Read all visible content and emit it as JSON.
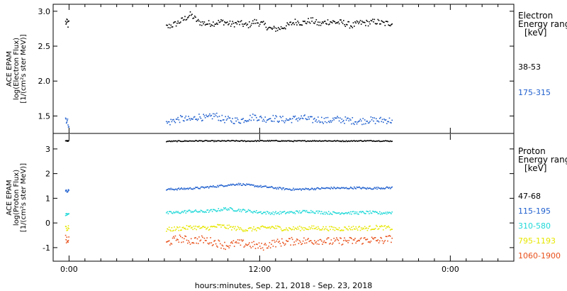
{
  "chart_data": [
    {
      "type": "scatter",
      "title": "",
      "xlabel": "",
      "ylabel_lines": [
        "ACE EPAM",
        "log(Electron Flux)",
        "[1/(cm²s ster MeV)]"
      ],
      "ylim": [
        1.25,
        3.1
      ],
      "yticks": [
        "1.5",
        "2.0",
        "2.5",
        "3.0"
      ],
      "legend": {
        "header": [
          "Electron",
          "Energy ranges",
          "[keV]"
        ],
        "placement": "right"
      },
      "series": [
        {
          "name": "38-53",
          "color": "#000000",
          "baseline": 2.83,
          "noise": 0.045,
          "segments": [
            {
              "start": -0.25,
              "end": -0.05,
              "values": [
                2.85,
                2.83,
                2.87,
                2.81,
                2.85
              ]
            },
            {
              "start": 6.1,
              "end": 20.3,
              "values": [
                2.78,
                2.82,
                2.88,
                2.96,
                2.85,
                2.83,
                2.84,
                2.86,
                2.82,
                2.84,
                2.8,
                2.86,
                2.82,
                2.75,
                2.76,
                2.8,
                2.86,
                2.84,
                2.88,
                2.82,
                2.86,
                2.85,
                2.84,
                2.8,
                2.84,
                2.84,
                2.86,
                2.83,
                2.84
              ]
            }
          ]
        },
        {
          "name": "175-315",
          "color": "#1f5fce",
          "baseline": 1.46,
          "noise": 0.05,
          "segments": [
            {
              "start": -0.25,
              "end": -0.05,
              "values": [
                1.48,
                1.44,
                1.42,
                1.38
              ]
            },
            {
              "start": 6.1,
              "end": 20.3,
              "values": [
                1.4,
                1.45,
                1.47,
                1.45,
                1.5,
                1.47,
                1.52,
                1.46,
                1.45,
                1.44,
                1.47,
                1.5,
                1.46,
                1.48,
                1.46,
                1.45,
                1.47,
                1.48,
                1.45,
                1.46,
                1.44,
                1.46,
                1.45,
                1.44,
                1.43,
                1.45,
                1.44,
                1.45,
                1.44
              ]
            }
          ]
        }
      ]
    },
    {
      "type": "scatter",
      "title": "",
      "xlabel": "hours:minutes, Sep. 21, 2018 - Sep. 23, 2018",
      "ylabel_lines": [
        "ACE EPAM",
        "log(Proton Flux)",
        "[1/(cm²s ster MeV)]"
      ],
      "ylim": [
        -1.55,
        3.6
      ],
      "yticks": [
        "-1",
        "0",
        "1",
        "2",
        "3"
      ],
      "xlim": [
        -1.0,
        28.0
      ],
      "xticks": [
        "0:00",
        "12:00",
        "0:00"
      ],
      "legend": {
        "header": [
          "Proton",
          "Energy ranges",
          "[keV]"
        ],
        "placement": "right"
      },
      "series": [
        {
          "name": "47-68",
          "color": "#000000",
          "baseline": 3.35,
          "noise": 0.02,
          "segments": [
            {
              "start": -0.25,
              "end": -0.05,
              "values": [
                3.34,
                3.35,
                3.35
              ]
            },
            {
              "start": 6.1,
              "end": 20.3,
              "values": [
                3.33,
                3.34,
                3.35,
                3.34,
                3.35,
                3.34,
                3.35,
                3.35,
                3.34,
                3.35,
                3.35,
                3.34,
                3.35,
                3.35,
                3.34
              ]
            }
          ]
        },
        {
          "name": "115-195",
          "color": "#1f5fce",
          "baseline": 1.4,
          "noise": 0.04,
          "segments": [
            {
              "start": -0.25,
              "end": -0.05,
              "values": [
                1.35,
                1.3,
                1.32,
                1.35
              ]
            },
            {
              "start": 6.1,
              "end": 20.3,
              "values": [
                1.38,
                1.4,
                1.42,
                1.45,
                1.5,
                1.55,
                1.6,
                1.55,
                1.5,
                1.45,
                1.4,
                1.38,
                1.4,
                1.42,
                1.44,
                1.43,
                1.45,
                1.42,
                1.44,
                1.45
              ]
            }
          ]
        },
        {
          "name": "310-580",
          "color": "#20d8d8",
          "baseline": 0.45,
          "noise": 0.06,
          "segments": [
            {
              "start": -0.25,
              "end": -0.05,
              "values": [
                0.35,
                0.4,
                0.42
              ]
            },
            {
              "start": 6.1,
              "end": 20.3,
              "values": [
                0.42,
                0.45,
                0.5,
                0.48,
                0.52,
                0.6,
                0.55,
                0.5,
                0.45,
                0.42,
                0.44,
                0.46,
                0.5,
                0.45,
                0.42,
                0.44,
                0.43,
                0.45,
                0.42,
                0.45
              ]
            }
          ]
        },
        {
          "name": "795-1193",
          "color": "#e6e600",
          "baseline": -0.2,
          "noise": 0.09,
          "segments": [
            {
              "start": -0.25,
              "end": -0.05,
              "values": [
                -0.1,
                -0.25,
                -0.15
              ]
            },
            {
              "start": 6.1,
              "end": 20.3,
              "values": [
                -0.25,
                -0.2,
                -0.15,
                -0.2,
                -0.1,
                -0.18,
                -0.25,
                -0.2,
                -0.15,
                -0.22,
                -0.2,
                -0.18,
                -0.2,
                -0.22,
                -0.18,
                -0.2,
                -0.15,
                -0.2
              ]
            }
          ]
        },
        {
          "name": "1060-1900",
          "color": "#e8501a",
          "baseline": -0.72,
          "noise": 0.16,
          "segments": [
            {
              "start": -0.25,
              "end": -0.05,
              "values": [
                -0.6,
                -0.75,
                -0.65
              ]
            },
            {
              "start": 6.1,
              "end": 20.3,
              "values": [
                -0.8,
                -0.6,
                -0.7,
                -0.65,
                -0.75,
                -0.9,
                -0.8,
                -0.85,
                -0.95,
                -0.8,
                -0.75,
                -0.7,
                -0.72,
                -0.68,
                -0.75,
                -0.7,
                -0.72,
                -0.65,
                -0.7,
                -0.6
              ]
            }
          ]
        }
      ]
    }
  ]
}
